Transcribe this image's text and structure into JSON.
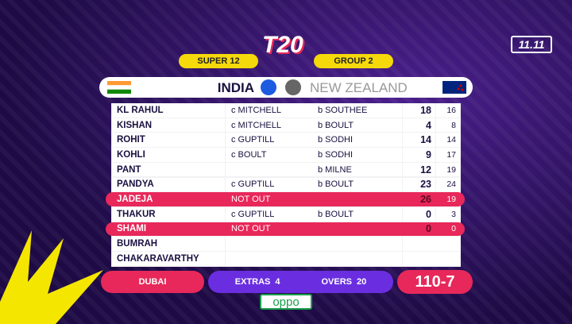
{
  "header": {
    "logo": "T20",
    "badge": "11.11",
    "stage": "SUPER 12",
    "group": "GROUP 2",
    "team1": "INDIA",
    "team2": "NEW ZEALAND"
  },
  "table": {
    "rows": [
      {
        "name": "KL RAHUL",
        "how": "c MITCHELL",
        "bowler": "b SOUTHEE",
        "runs": 18,
        "balls": 16
      },
      {
        "name": "KISHAN",
        "how": "c MITCHELL",
        "bowler": "b BOULT",
        "runs": 4,
        "balls": 8
      },
      {
        "name": "ROHIT",
        "how": "c GUPTILL",
        "bowler": "b SODHI",
        "runs": 14,
        "balls": 14
      },
      {
        "name": "KOHLI",
        "how": "c BOULT",
        "bowler": "b SODHI",
        "runs": 9,
        "balls": 17
      },
      {
        "name": "PANT",
        "bowler": "b MILNE",
        "runs": 12,
        "balls": 19
      },
      {
        "name": "PANDYA",
        "how": "c GUPTILL",
        "bowler": "b BOULT",
        "runs": 23,
        "balls": 24
      },
      {
        "name": "JADEJA",
        "not_out": "NOT OUT",
        "runs": 26,
        "balls": 19
      },
      {
        "name": "THAKUR",
        "how": "c GUPTILL",
        "bowler": "b BOULT",
        "runs": 0,
        "balls": 3
      },
      {
        "name": "SHAMI",
        "not_out": "NOT OUT",
        "runs": 0,
        "balls": 0
      },
      {
        "name": "BUMRAH"
      },
      {
        "name": "CHAKARAVARTHY"
      }
    ]
  },
  "footer": {
    "venue": "DUBAI",
    "extras_label": "EXTRAS",
    "extras": 4,
    "overs_label": "OVERS",
    "overs": 20,
    "score": "110-7",
    "sponsor": "oppo"
  }
}
